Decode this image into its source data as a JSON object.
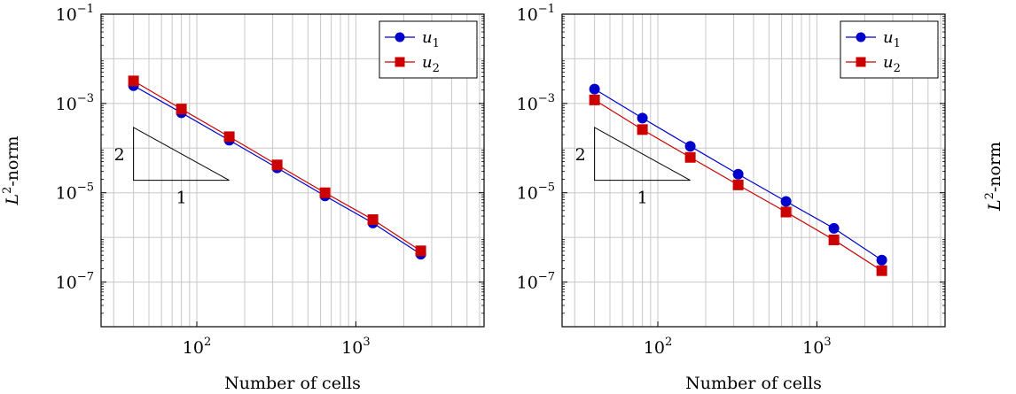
{
  "chart_data": [
    {
      "type": "line",
      "xscale": "log",
      "yscale": "log",
      "xlim": [
        25,
        6400
      ],
      "ylim": [
        1e-08,
        0.1
      ],
      "grid": true,
      "xlabel": "Number of cells",
      "ylabel": "L²-norm",
      "ylabel_base": "L",
      "ylabel_sup": "2",
      "ylabel_rest": "-norm",
      "xticks": [
        {
          "base": "10",
          "exp": "2",
          "value": 100
        },
        {
          "base": "10",
          "exp": "3",
          "value": 1000
        }
      ],
      "yticks": [
        {
          "base": "10",
          "exp": "−1",
          "value": 0.1
        },
        {
          "base": "10",
          "exp": "−3",
          "value": 0.001
        },
        {
          "base": "10",
          "exp": "−5",
          "value": 1e-05
        },
        {
          "base": "10",
          "exp": "−7",
          "value": 1e-07
        }
      ],
      "legend_position": "top-right",
      "series": [
        {
          "name": "u1",
          "name_base": "u",
          "name_sub": "1",
          "color": "#0000cc",
          "marker": "circle",
          "x": [
            40,
            80,
            160,
            320,
            640,
            1280,
            2560
          ],
          "y": [
            0.0025,
            0.00062,
            0.00015,
            3.6e-05,
            8.5e-06,
            2.1e-06,
            4.2e-07
          ]
        },
        {
          "name": "u2",
          "name_base": "u",
          "name_sub": "2",
          "color": "#cc0000",
          "marker": "square",
          "x": [
            40,
            80,
            160,
            320,
            640,
            1280,
            2560
          ],
          "y": [
            0.0032,
            0.00075,
            0.00018,
            4.2e-05,
            1e-05,
            2.5e-06,
            5e-07
          ]
        }
      ],
      "slope_triangle": {
        "rise_label": "2",
        "run_label": "1",
        "x0": 40,
        "x1": 160,
        "y_bottom": 1.9e-05,
        "y_top": 0.00029
      }
    },
    {
      "type": "line",
      "xscale": "log",
      "yscale": "log",
      "xlim": [
        25,
        6400
      ],
      "ylim": [
        1e-08,
        0.1
      ],
      "grid": true,
      "xlabel": "Number of cells",
      "ylabel": "",
      "xticks": [
        {
          "base": "10",
          "exp": "2",
          "value": 100
        },
        {
          "base": "10",
          "exp": "3",
          "value": 1000
        }
      ],
      "yticks": [
        {
          "base": "10",
          "exp": "−1",
          "value": 0.1
        },
        {
          "base": "10",
          "exp": "−3",
          "value": 0.001
        },
        {
          "base": "10",
          "exp": "−5",
          "value": 1e-05
        },
        {
          "base": "10",
          "exp": "−7",
          "value": 1e-07
        }
      ],
      "legend_position": "top-right",
      "series": [
        {
          "name": "u1",
          "name_base": "u",
          "name_sub": "1",
          "color": "#0000cc",
          "marker": "circle",
          "x": [
            40,
            80,
            160,
            320,
            640,
            1280,
            2560
          ],
          "y": [
            0.0021,
            0.00047,
            0.00011,
            2.6e-05,
            6.4e-06,
            1.6e-06,
            3.1e-07
          ]
        },
        {
          "name": "u2",
          "name_base": "u",
          "name_sub": "2",
          "color": "#cc0000",
          "marker": "square",
          "x": [
            40,
            80,
            160,
            320,
            640,
            1280,
            2560
          ],
          "y": [
            0.0012,
            0.00026,
            6.2e-05,
            1.5e-05,
            3.7e-06,
            8.8e-07,
            1.8e-07
          ]
        }
      ],
      "slope_triangle": {
        "rise_label": "2",
        "run_label": "1",
        "x0": 40,
        "x1": 160,
        "y_bottom": 1.9e-05,
        "y_top": 0.00029
      }
    },
    {
      "type": "line",
      "xscale": "log",
      "yscale": "log",
      "partial": true,
      "ylabel": "L²-norm",
      "ylabel_base": "L",
      "ylabel_sup": "2",
      "ylabel_rest": "-norm"
    }
  ]
}
